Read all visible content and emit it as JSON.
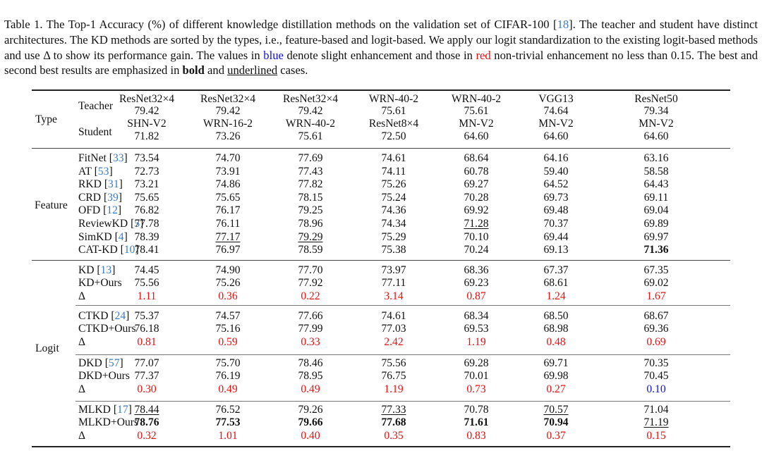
{
  "caption": {
    "prefix": "Table 1.  The Top-1 Accuracy (%) of different knowledge distillation methods on the validation set of CIFAR-100 [",
    "cite": "18",
    "part2": "].  The teacher and student have distinct architectures.  The KD methods are sorted by the types, i.e., feature-based and logit-based.  We apply our logit standardization to the existing logit-based methods and use Δ to show its performance gain. The values in ",
    "blue_word": "blue",
    "part3": " denote slight enhancement and those in ",
    "red_word": "red",
    "part4": " non-trivial enhancement no less than 0.15. The best and second best results are emphasized in ",
    "bold_word": "bold",
    "part5": " and ",
    "underline_word": "underlined",
    "part6": " cases."
  },
  "header": {
    "type_label": "Type",
    "teacher_label": "Teacher",
    "student_label": "Student",
    "columns": [
      {
        "teacher": "ResNet32×4",
        "teacher_acc": "79.42",
        "student": "SHN-V2",
        "student_acc": "71.82"
      },
      {
        "teacher": "ResNet32×4",
        "teacher_acc": "79.42",
        "student": "WRN-16-2",
        "student_acc": "73.26"
      },
      {
        "teacher": "ResNet32×4",
        "teacher_acc": "79.42",
        "student": "WRN-40-2",
        "student_acc": "75.61"
      },
      {
        "teacher": "WRN-40-2",
        "teacher_acc": "75.61",
        "student": "ResNet8×4",
        "student_acc": "72.50"
      },
      {
        "teacher": "WRN-40-2",
        "teacher_acc": "75.61",
        "student": "MN-V2",
        "student_acc": "64.60"
      },
      {
        "teacher": "VGG13",
        "teacher_acc": "74.64",
        "student": "MN-V2",
        "student_acc": "64.60"
      },
      {
        "teacher": "ResNet50",
        "teacher_acc": "79.34",
        "student": "MN-V2",
        "student_acc": "64.60"
      }
    ]
  },
  "feature": {
    "type_label": "Feature",
    "rows": [
      {
        "name": "FitNet",
        "cite": "33",
        "values": [
          "73.54",
          "74.70",
          "77.69",
          "74.61",
          "68.64",
          "64.16",
          "63.16"
        ],
        "styles": [
          "",
          "",
          "",
          "",
          "",
          "",
          ""
        ]
      },
      {
        "name": "AT",
        "cite": "53",
        "values": [
          "72.73",
          "73.91",
          "77.43",
          "74.11",
          "60.78",
          "59.40",
          "58.58"
        ],
        "styles": [
          "",
          "",
          "",
          "",
          "",
          "",
          ""
        ]
      },
      {
        "name": "RKD",
        "cite": "31",
        "values": [
          "73.21",
          "74.86",
          "77.82",
          "75.26",
          "69.27",
          "64.52",
          "64.43"
        ],
        "styles": [
          "",
          "",
          "",
          "",
          "",
          "",
          ""
        ]
      },
      {
        "name": "CRD",
        "cite": "39",
        "values": [
          "75.65",
          "75.65",
          "78.15",
          "75.24",
          "70.28",
          "69.73",
          "69.11"
        ],
        "styles": [
          "",
          "",
          "",
          "",
          "",
          "",
          ""
        ]
      },
      {
        "name": "OFD",
        "cite": "12",
        "values": [
          "76.82",
          "76.17",
          "79.25",
          "74.36",
          "69.92",
          "69.48",
          "69.04"
        ],
        "styles": [
          "",
          "",
          "",
          "",
          "",
          "",
          ""
        ]
      },
      {
        "name": "ReviewKD",
        "cite": "5",
        "values": [
          "77.78",
          "76.11",
          "78.96",
          "74.34",
          "71.28",
          "70.37",
          "69.89"
        ],
        "styles": [
          "",
          "",
          "",
          "",
          "ul",
          "",
          ""
        ]
      },
      {
        "name": "SimKD",
        "cite": "4",
        "values": [
          "78.39",
          "77.17",
          "79.29",
          "75.29",
          "70.10",
          "69.44",
          "69.97"
        ],
        "styles": [
          "",
          "ul",
          "ul",
          "",
          "",
          "",
          ""
        ]
      },
      {
        "name": "CAT-KD",
        "cite": "10",
        "values": [
          "78.41",
          "76.97",
          "78.59",
          "75.38",
          "70.24",
          "69.13",
          "71.36"
        ],
        "styles": [
          "",
          "",
          "",
          "",
          "",
          "",
          "bold"
        ]
      }
    ]
  },
  "logit": {
    "type_label": "Logit",
    "groups": [
      {
        "base": {
          "name": "KD",
          "cite": "13",
          "values": [
            "74.45",
            "74.90",
            "77.70",
            "73.97",
            "68.36",
            "67.37",
            "67.35"
          ],
          "styles": [
            "",
            "",
            "",
            "",
            "",
            "",
            ""
          ]
        },
        "ours": {
          "name": "KD+Ours",
          "values": [
            "75.56",
            "75.26",
            "77.92",
            "77.11",
            "69.23",
            "68.61",
            "69.02"
          ],
          "styles": [
            "",
            "",
            "",
            "",
            "",
            "",
            ""
          ]
        },
        "delta": {
          "name": "Δ",
          "values": [
            "1.11",
            "0.36",
            "0.22",
            "3.14",
            "0.87",
            "1.24",
            "1.67"
          ],
          "styles": [
            "red",
            "red",
            "red",
            "red",
            "red",
            "red",
            "red"
          ]
        }
      },
      {
        "base": {
          "name": "CTKD",
          "cite": "24",
          "values": [
            "75.37",
            "74.57",
            "77.66",
            "74.61",
            "68.34",
            "68.50",
            "68.67"
          ],
          "styles": [
            "",
            "",
            "",
            "",
            "",
            "",
            ""
          ]
        },
        "ours": {
          "name": "CTKD+Ours",
          "values": [
            "76.18",
            "75.16",
            "77.99",
            "77.03",
            "69.53",
            "68.98",
            "69.36"
          ],
          "styles": [
            "",
            "",
            "",
            "",
            "",
            "",
            ""
          ]
        },
        "delta": {
          "name": "Δ",
          "values": [
            "0.81",
            "0.59",
            "0.33",
            "2.42",
            "1.19",
            "0.48",
            "0.69"
          ],
          "styles": [
            "red",
            "red",
            "red",
            "red",
            "red",
            "red",
            "red"
          ]
        }
      },
      {
        "base": {
          "name": "DKD",
          "cite": "57",
          "values": [
            "77.07",
            "75.70",
            "78.46",
            "75.56",
            "69.28",
            "69.71",
            "70.35"
          ],
          "styles": [
            "",
            "",
            "",
            "",
            "",
            "",
            ""
          ]
        },
        "ours": {
          "name": "DKD+Ours",
          "values": [
            "77.37",
            "76.19",
            "78.95",
            "76.75",
            "70.01",
            "69.98",
            "70.45"
          ],
          "styles": [
            "",
            "",
            "",
            "",
            "",
            "",
            ""
          ]
        },
        "delta": {
          "name": "Δ",
          "values": [
            "0.30",
            "0.49",
            "0.49",
            "1.19",
            "0.73",
            "0.27",
            "0.10"
          ],
          "styles": [
            "red",
            "red",
            "red",
            "red",
            "red",
            "red",
            "blue"
          ]
        }
      },
      {
        "base": {
          "name": "MLKD",
          "cite": "17",
          "values": [
            "78.44",
            "76.52",
            "79.26",
            "77.33",
            "70.78",
            "70.57",
            "71.04"
          ],
          "styles": [
            "ul",
            "",
            "",
            "ul",
            "",
            "ul",
            ""
          ]
        },
        "ours": {
          "name": "MLKD+Ours",
          "values": [
            "78.76",
            "77.53",
            "79.66",
            "77.68",
            "71.61",
            "70.94",
            "71.19"
          ],
          "styles": [
            "bold",
            "bold",
            "bold",
            "bold",
            "bold",
            "bold",
            "ul"
          ]
        },
        "delta": {
          "name": "Δ",
          "values": [
            "0.32",
            "1.01",
            "0.40",
            "0.35",
            "0.83",
            "0.37",
            "0.15"
          ],
          "styles": [
            "red",
            "red",
            "red",
            "red",
            "red",
            "red",
            "red"
          ]
        }
      }
    ]
  },
  "colors": {
    "red": "#e81010",
    "blue": "#1010e8",
    "cite": "#3a7cc3"
  }
}
